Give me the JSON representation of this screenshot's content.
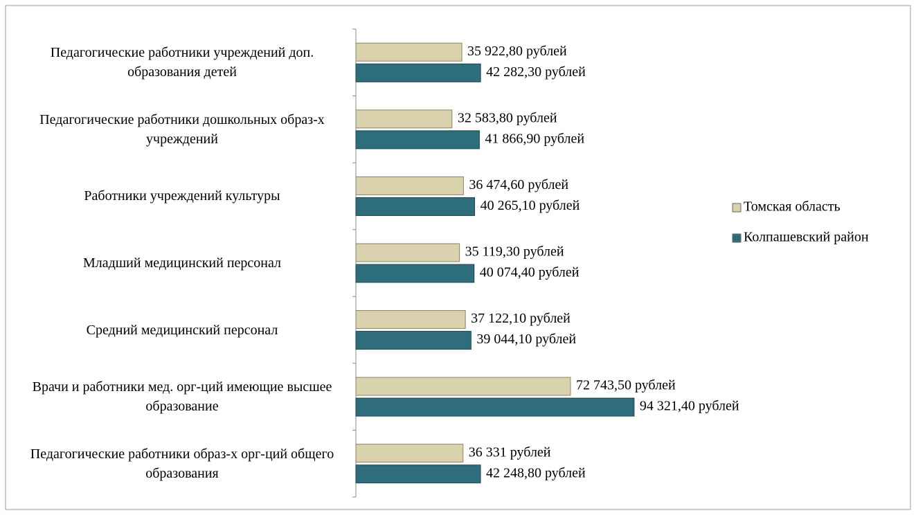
{
  "chart_data": {
    "type": "hbar",
    "categories": [
      "Педагогические работники учреждений доп. образования детей",
      "Педагогические работники дошкольных образ-х учреждений",
      "Работники учреждений культуры",
      "Младший медицинский персонал",
      "Средний медицинский персонал",
      "Врачи и работники мед. орг-ций имеющие высшее образование",
      "Педагогические работники образ-х орг-ций общего образования"
    ],
    "series": [
      {
        "name": "Томская область",
        "color": "#d9d2ac",
        "values": [
          35922.8,
          32583.8,
          36474.6,
          35119.3,
          37122.1,
          72743.5,
          36331
        ],
        "value_labels": [
          "35 922,80 рублей",
          "32 583,80 рублей",
          "36 474,60 рублей",
          "35 119,30 рублей",
          "37 122,10 рублей",
          "72 743,50 рублей",
          "36 331 рублей"
        ]
      },
      {
        "name": "Колпашевский район",
        "color": "#2e6e7c",
        "values": [
          42282.3,
          41866.9,
          40265.1,
          40074.4,
          39044.1,
          94321.4,
          42248.8
        ],
        "value_labels": [
          "42 282,30 рублей",
          "41 866,90 рублей",
          "40 265,10 рублей",
          "40 074,40 рублей",
          "39 044,10 рублей",
          "94 321,40 рублей",
          "42 248,80 рублей"
        ]
      }
    ],
    "xlim": [
      0,
      115000
    ],
    "legend": "right"
  }
}
